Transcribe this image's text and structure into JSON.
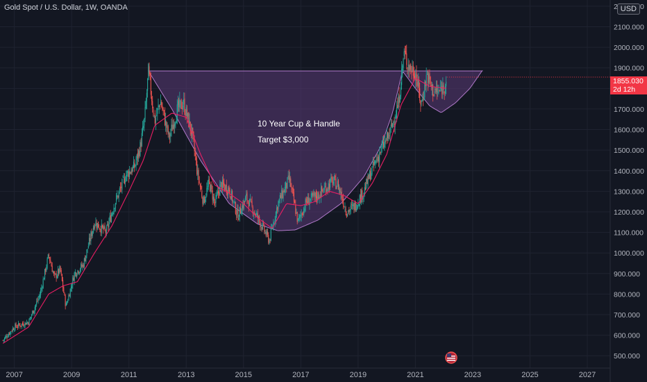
{
  "header": {
    "title": "Gold Spot / U.S. Dollar, 1W, OANDA",
    "currency": "USD"
  },
  "price_tag": {
    "price": "1855.030",
    "countdown": "2d 12h"
  },
  "annotations": {
    "line1": "10 Year Cup & Handle",
    "line2": "Target $3,000"
  },
  "colors": {
    "background": "#131722",
    "grid": "#1f2330",
    "up_candle": "#26a69a",
    "down_candle": "#ef5350",
    "moving_average": "#e91e63",
    "cup_fill": "#5b3a77",
    "cup_stroke": "#b079c9",
    "price_tag": "#f23645"
  },
  "chart_data": {
    "type": "candlestick",
    "title": "Gold Spot / U.S. Dollar, 1W, OANDA",
    "x_tick_labels": [
      "2007",
      "2009",
      "2011",
      "2013",
      "2015",
      "2017",
      "2019",
      "2021",
      "2023",
      "2025",
      "2027"
    ],
    "y_tick_labels": [
      "500.000",
      "600.000",
      "700.000",
      "800.000",
      "900.000",
      "1000.000",
      "1100.000",
      "1200.000",
      "1300.000",
      "1400.000",
      "1500.000",
      "1600.000",
      "1700.000",
      "1800.000",
      "1900.000",
      "2000.000",
      "2100.000",
      "2200.000"
    ],
    "xlim": [
      2006.5,
      2027.8
    ],
    "ylim": [
      440,
      2230
    ],
    "grid": true,
    "last_price": 1855.03,
    "series": [
      {
        "name": "",
        "type": "price",
        "points": [
          [
            2006.6,
            575
          ],
          [
            2007.0,
            640
          ],
          [
            2007.5,
            665
          ],
          [
            2007.9,
            800
          ],
          [
            2008.2,
            990
          ],
          [
            2008.4,
            880
          ],
          [
            2008.6,
            920
          ],
          [
            2008.8,
            740
          ],
          [
            2009.1,
            900
          ],
          [
            2009.4,
            940
          ],
          [
            2009.8,
            1150
          ],
          [
            2010.2,
            1100
          ],
          [
            2010.5,
            1240
          ],
          [
            2010.9,
            1380
          ],
          [
            2011.2,
            1420
          ],
          [
            2011.4,
            1520
          ],
          [
            2011.55,
            1650
          ],
          [
            2011.68,
            1880
          ],
          [
            2011.9,
            1640
          ],
          [
            2012.1,
            1740
          ],
          [
            2012.4,
            1560
          ],
          [
            2012.7,
            1700
          ],
          [
            2012.9,
            1730
          ],
          [
            2013.2,
            1580
          ],
          [
            2013.4,
            1380
          ],
          [
            2013.6,
            1250
          ],
          [
            2013.8,
            1340
          ],
          [
            2014.0,
            1240
          ],
          [
            2014.2,
            1330
          ],
          [
            2014.5,
            1310
          ],
          [
            2014.8,
            1180
          ],
          [
            2015.1,
            1270
          ],
          [
            2015.5,
            1170
          ],
          [
            2015.9,
            1060
          ],
          [
            2016.2,
            1240
          ],
          [
            2016.6,
            1360
          ],
          [
            2016.9,
            1150
          ],
          [
            2017.2,
            1250
          ],
          [
            2017.6,
            1280
          ],
          [
            2018.1,
            1350
          ],
          [
            2018.3,
            1330
          ],
          [
            2018.6,
            1200
          ],
          [
            2018.9,
            1230
          ],
          [
            2019.2,
            1300
          ],
          [
            2019.5,
            1410
          ],
          [
            2019.8,
            1500
          ],
          [
            2020.1,
            1580
          ],
          [
            2020.4,
            1720
          ],
          [
            2020.6,
            1970
          ],
          [
            2020.8,
            1900
          ],
          [
            2021.0,
            1880
          ],
          [
            2021.2,
            1720
          ],
          [
            2021.4,
            1870
          ],
          [
            2021.6,
            1790
          ],
          [
            2021.8,
            1780
          ],
          [
            2022.0,
            1815
          ],
          [
            2022.1,
            1855
          ]
        ]
      },
      {
        "name": "",
        "type": "moving_average",
        "points": [
          [
            2006.6,
            560
          ],
          [
            2007.5,
            640
          ],
          [
            2008.2,
            800
          ],
          [
            2008.7,
            840
          ],
          [
            2009.2,
            860
          ],
          [
            2009.8,
            1000
          ],
          [
            2010.4,
            1130
          ],
          [
            2011.0,
            1300
          ],
          [
            2011.5,
            1450
          ],
          [
            2011.9,
            1620
          ],
          [
            2012.5,
            1680
          ],
          [
            2013.0,
            1660
          ],
          [
            2013.5,
            1480
          ],
          [
            2014.0,
            1330
          ],
          [
            2014.5,
            1290
          ],
          [
            2015.0,
            1240
          ],
          [
            2015.5,
            1170
          ],
          [
            2016.0,
            1120
          ],
          [
            2016.5,
            1240
          ],
          [
            2017.0,
            1230
          ],
          [
            2017.5,
            1250
          ],
          [
            2018.0,
            1300
          ],
          [
            2018.5,
            1280
          ],
          [
            2019.0,
            1240
          ],
          [
            2019.5,
            1340
          ],
          [
            2020.0,
            1480
          ],
          [
            2020.5,
            1720
          ],
          [
            2021.0,
            1850
          ],
          [
            2021.5,
            1810
          ],
          [
            2022.1,
            1800
          ]
        ]
      },
      {
        "name": "",
        "type": "cup_and_handle",
        "points": [
          [
            2011.68,
            1885
          ],
          [
            2012.5,
            1700
          ],
          [
            2013.5,
            1450
          ],
          [
            2014.5,
            1240
          ],
          [
            2015.5,
            1140
          ],
          [
            2016.2,
            1108
          ],
          [
            2016.8,
            1112
          ],
          [
            2017.6,
            1160
          ],
          [
            2018.4,
            1240
          ],
          [
            2019.2,
            1370
          ],
          [
            2019.8,
            1520
          ],
          [
            2020.2,
            1680
          ],
          [
            2020.55,
            1885
          ],
          [
            2021.0,
            1800
          ],
          [
            2021.5,
            1715
          ],
          [
            2021.9,
            1682
          ],
          [
            2022.4,
            1730
          ],
          [
            2022.9,
            1800
          ],
          [
            2023.35,
            1890
          ]
        ],
        "rim": 1885
      }
    ]
  }
}
